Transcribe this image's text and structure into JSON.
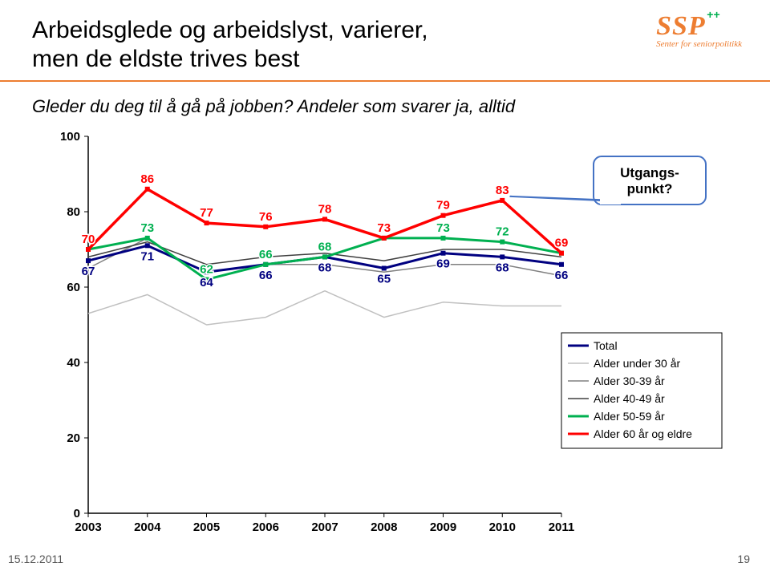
{
  "title_line1": "Arbeidsglede og arbeidslyst, varierer,",
  "title_line2": "men de eldste trives best",
  "subtitle": "Gleder du deg til å gå på jobben? Andeler som svarer ja, alltid",
  "logo": {
    "main": "SSP",
    "plus": "++",
    "sub": "Senter for seniorpolitikk"
  },
  "footer": {
    "date": "15.12.2011",
    "page": "19"
  },
  "chart": {
    "type": "line",
    "background_color": "#ffffff",
    "categories": [
      "2003",
      "2004",
      "2005",
      "2006",
      "2007",
      "2008",
      "2009",
      "2010",
      "2011"
    ],
    "ylim": [
      0,
      100
    ],
    "ytick_step": 20,
    "yticks": [
      0,
      20,
      40,
      60,
      80,
      100
    ],
    "axis_fontsize": 15,
    "axis_fontweight": 700,
    "series": [
      {
        "name": "Total",
        "color": "#000080",
        "width": 3,
        "values": [
          67,
          71,
          64,
          66,
          68,
          65,
          69,
          68,
          66
        ],
        "show_labels": true,
        "marker": true
      },
      {
        "name": "Alder under 30 år",
        "color": "#c0c0c0",
        "width": 1.5,
        "values": [
          53,
          58,
          50,
          52,
          59,
          52,
          56,
          55,
          55
        ],
        "show_labels": false,
        "marker": false
      },
      {
        "name": "Alder 30-39 år",
        "color": "#808080",
        "width": 1.5,
        "values": [
          65,
          73,
          62,
          66,
          66,
          64,
          66,
          66,
          63
        ],
        "show_labels": false,
        "marker": false
      },
      {
        "name": "Alder 40-49 år",
        "color": "#404040",
        "width": 1.5,
        "values": [
          68,
          72,
          66,
          68,
          69,
          67,
          70,
          70,
          68
        ],
        "show_labels": false,
        "marker": false
      },
      {
        "name": "Alder 50-59 år",
        "color": "#00b050",
        "width": 3,
        "values": [
          70,
          73,
          62,
          66,
          68,
          73,
          73,
          72,
          69
        ],
        "show_labels": true,
        "marker": true
      },
      {
        "name": "Alder 60 år og eldre",
        "color": "#ff0000",
        "width": 3.5,
        "values": [
          70,
          86,
          77,
          76,
          78,
          73,
          79,
          83,
          69
        ],
        "show_labels": true,
        "marker": true
      }
    ],
    "callout": {
      "text_line1": "Utgangs-",
      "text_line2": "punkt?",
      "fill": "#ffffff",
      "border": "#4472c4",
      "border_width": 2,
      "radius": 10
    },
    "legend": {
      "items": [
        {
          "label": "Total",
          "color": "#000080",
          "width": 3
        },
        {
          "label": "Alder under 30 år",
          "color": "#c0c0c0",
          "width": 1.5
        },
        {
          "label": "Alder 30-39 år",
          "color": "#808080",
          "width": 1.5
        },
        {
          "label": "Alder 40-49 år",
          "color": "#404040",
          "width": 1.5
        },
        {
          "label": "Alder 50-59 år",
          "color": "#00b050",
          "width": 3
        },
        {
          "label": "Alder 60 år og eldre",
          "color": "#ff0000",
          "width": 3
        }
      ],
      "border": "#000000"
    }
  }
}
